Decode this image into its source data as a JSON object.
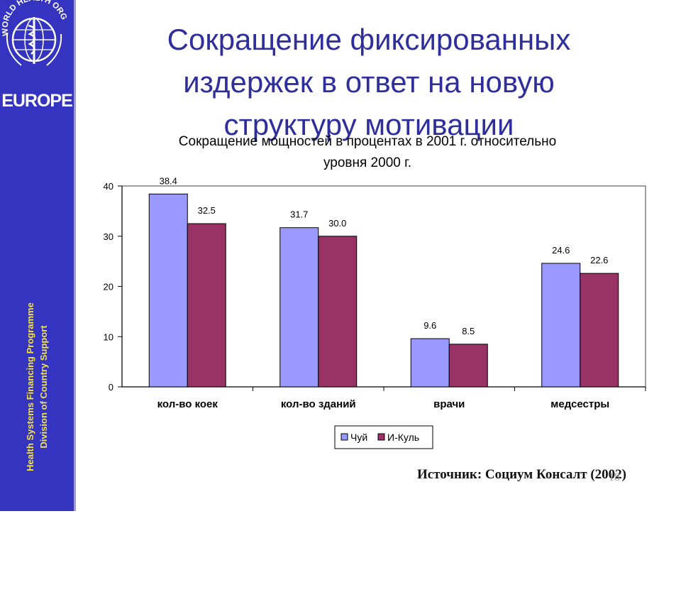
{
  "header": {
    "title_lines": [
      "Сокращение фиксированных",
      "издержек в ответ на новую",
      "структуру мотивации"
    ]
  },
  "sidebar": {
    "logo_text": "WORLD HEALTH ORGANIZATION",
    "region": "EUROPE",
    "programme_line1": "Health Systems Financing Programme",
    "programme_line2": "Division of Country Support"
  },
  "footer": {
    "source": "Источник:  Социум Консалт  (2002)",
    "page_number": "18"
  },
  "chart_data": {
    "type": "bar",
    "title_lines": [
      "Сокращение мощностей в процентах в 2001 г. относительно",
      "уровня 2000 г."
    ],
    "categories": [
      "кол-во коек",
      "кол-во зданий",
      "врачи",
      "медсестры"
    ],
    "series": [
      {
        "name": "Чуй",
        "color": "#9999ff",
        "values": [
          38.4,
          31.7,
          9.6,
          24.6
        ],
        "labels": [
          "38.4",
          "31.7",
          "9.6",
          "24.6"
        ]
      },
      {
        "name": "И-Куль",
        "color": "#993366",
        "values": [
          32.5,
          30.0,
          8.5,
          22.6
        ],
        "labels": [
          "32.5",
          "30.0",
          "8.5",
          "22.6"
        ]
      }
    ],
    "ylim": [
      0,
      40
    ],
    "yticks": [
      0,
      10,
      20,
      30,
      40
    ],
    "grid": false,
    "legend_position": "bottom"
  }
}
